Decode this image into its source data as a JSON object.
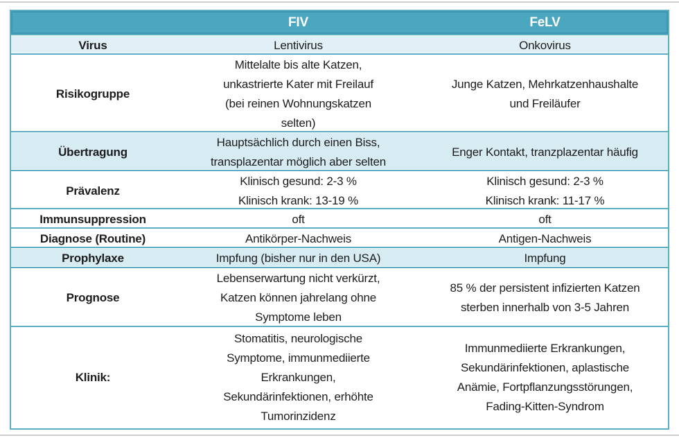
{
  "colors": {
    "header_bg": "#4ba6c0",
    "header_border": "#3d95af",
    "table_border": "#5aadc5",
    "row_shaded_bg": "#d7ebf2",
    "row_virus_bg": "#e1f0f6",
    "row_white_bg": "#ffffff",
    "header_text": "#ffffff",
    "body_text": "#1c1c1c",
    "page_rule": "#cfcfcf"
  },
  "table": {
    "columns": [
      "",
      "FIV",
      "FeLV"
    ],
    "rows": [
      {
        "label": "Virus",
        "fiv": "Lentivirus",
        "felv": "Onkovirus"
      },
      {
        "label": "Risikogruppe",
        "fiv": "Mittelalte bis alte Katzen,\nunkastrierte Kater mit Freilauf\n(bei reinen Wohnungskatzen\nselten)",
        "felv": "Junge Katzen, Mehrkatzenhaushalte\nund Freiläufer"
      },
      {
        "label": "Übertragung",
        "fiv": "Hauptsächlich durch einen Biss,\ntransplazentar möglich aber selten",
        "felv": "Enger Kontakt, tranzplazentar häufig"
      },
      {
        "label": "Prävalenz",
        "fiv": "Klinisch gesund: 2-3 %\nKlinisch krank: 13-19 %",
        "felv": "Klinisch gesund: 2-3 %\nKlinisch krank: 11-17 %"
      },
      {
        "label": "Immunsuppression",
        "fiv": "oft",
        "felv": "oft"
      },
      {
        "label": "Diagnose (Routine)",
        "fiv": "Antikörper-Nachweis",
        "felv": "Antigen-Nachweis"
      },
      {
        "label": "Prophylaxe",
        "fiv": "Impfung (bisher nur in den USA)",
        "felv": "Impfung"
      },
      {
        "label": "Prognose",
        "fiv": "Lebenserwartung nicht verkürzt,\nKatzen können jahrelang ohne\nSymptome leben",
        "felv": "85 % der persistent infizierten Katzen\nsterben innerhalb von 3-5 Jahren"
      },
      {
        "label": "Klinik:",
        "fiv": "Stomatitis, neurologische\nSymptome, immunmediierte\nErkrankungen,\nSekundärinfektionen, erhöhte\nTumorinzidenz",
        "felv": "Immunmediierte Erkrankungen,\nSekundärinfektionen, aplastische\nAnämie, Fortpflanzungsstörungen,\nFading-Kitten-Syndrom"
      }
    ]
  }
}
